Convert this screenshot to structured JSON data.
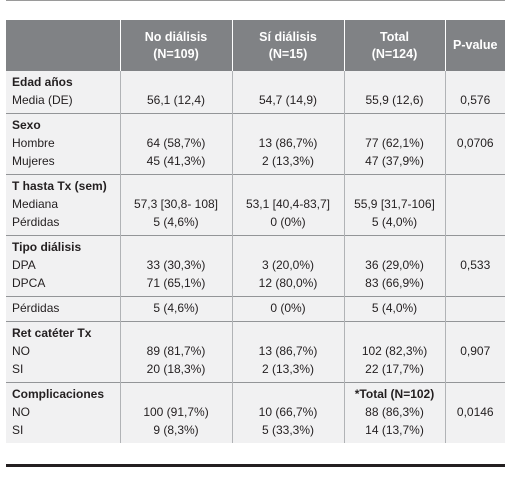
{
  "table": {
    "columns": [
      "",
      "No diálisis\n(N=109)",
      "Sí diálisis\n(N=15)",
      "Total\n(N=124)",
      "P-value"
    ],
    "rows": [
      {
        "group_start": true,
        "first": true,
        "cells": [
          "Edad años",
          "",
          "",
          "",
          ""
        ],
        "bold": [
          true,
          false,
          false,
          false,
          false
        ]
      },
      {
        "group_end": true,
        "cells": [
          "Media (DE)",
          "56,1 (12,4)",
          "54,7 (14,9)",
          "55,9 (12,6)",
          "0,576"
        ]
      },
      {
        "group_start": true,
        "cells": [
          "Sexo",
          "",
          "",
          "",
          ""
        ],
        "bold": [
          true,
          false,
          false,
          false,
          false
        ]
      },
      {
        "cells": [
          "Hombre",
          "64 (58,7%)",
          "13 (86,7%)",
          "77 (62,1%)",
          "0,0706"
        ]
      },
      {
        "group_end": true,
        "cells": [
          "Mujeres",
          "45 (41,3%)",
          "2 (13,3%)",
          "47 (37,9%)",
          ""
        ]
      },
      {
        "group_start": true,
        "cells": [
          "T hasta Tx (sem)",
          "",
          "",
          "",
          ""
        ],
        "bold": [
          true,
          false,
          false,
          false,
          false
        ]
      },
      {
        "cells": [
          "Mediana",
          "57,3 [30,8- 108]",
          "53,1 [40,4-83,7]",
          "55,9 [31,7-106]",
          ""
        ]
      },
      {
        "group_end": true,
        "cells": [
          "Pérdidas",
          "5 (4,6%)",
          "0 (0%)",
          "5 (4,0%)",
          ""
        ]
      },
      {
        "group_start": true,
        "cells": [
          "Tipo diálisis",
          "",
          "",
          "",
          ""
        ],
        "bold": [
          true,
          false,
          false,
          false,
          false
        ]
      },
      {
        "cells": [
          "DPA",
          "33 (30,3%)",
          "3 (20,0%)",
          "36 (29,0%)",
          "0,533"
        ]
      },
      {
        "group_end": true,
        "cells": [
          "DPCA",
          "71 (65,1%)",
          "12 (80,0%)",
          "83 (66,9%)",
          ""
        ]
      },
      {
        "group_start": true,
        "group_end": true,
        "cells": [
          "Pérdidas",
          "5 (4,6%)",
          "0 (0%)",
          "5 (4,0%)",
          ""
        ]
      },
      {
        "group_start": true,
        "cells": [
          "Ret catéter Tx",
          "",
          "",
          "",
          ""
        ],
        "bold": [
          true,
          false,
          false,
          false,
          false
        ]
      },
      {
        "cells": [
          "NO",
          "89 (81,7%)",
          "13 (86,7%)",
          "102 (82,3%)",
          "0,907"
        ]
      },
      {
        "group_end": true,
        "cells": [
          "SI",
          "20 (18,3%)",
          "2 (13,3%)",
          "22 (17,7%)",
          ""
        ]
      },
      {
        "group_start": true,
        "cells": [
          "Complicaciones",
          "",
          "",
          "*Total (N=102)",
          ""
        ],
        "bold": [
          true,
          false,
          false,
          true,
          false
        ]
      },
      {
        "cells": [
          "NO",
          "100 (91,7%)",
          "10 (66,7%)",
          "88 (86,3%)",
          "0,0146"
        ]
      },
      {
        "group_end": true,
        "cells": [
          "SI",
          "9 (8,3%)",
          "5 (33,3%)",
          "14 (13,7%)",
          ""
        ]
      }
    ]
  }
}
